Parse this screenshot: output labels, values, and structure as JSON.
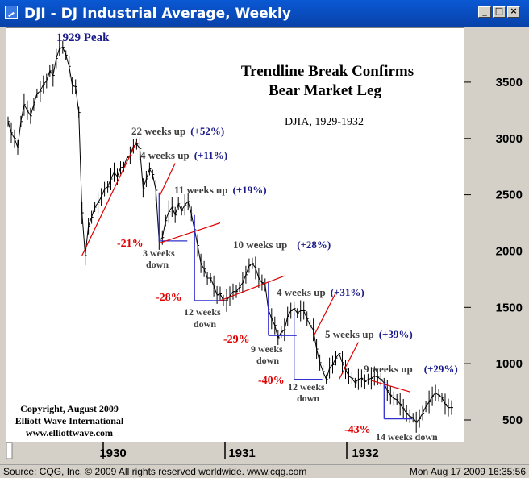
{
  "window": {
    "title": "DJI - DJ Industrial Average, Weekly",
    "buttons": {
      "minimize": "_",
      "maximize": "□",
      "close": "×"
    }
  },
  "footer": {
    "source": "Source: CQG, Inc. © 2009 All rights reserved worldwide. www.cqg.com",
    "timestamp": "Mon Aug 17 2009 16:35:56"
  },
  "chart_data": {
    "type": "line",
    "title": "Trendline Break Confirms\nBear Market Leg",
    "title_line1": "Trendline Break Confirms",
    "title_line2": "Bear Market Leg",
    "subtitle": "DJIA, 1929-1932",
    "peak_label": "1929 Peak",
    "copyright": [
      "Copyright, August 2009",
      "Elliott Wave International",
      "www.elliottwave.com"
    ],
    "xlabel": "",
    "ylabel": "",
    "x_ticks": [
      "1930",
      "1931",
      "1932"
    ],
    "y_ticks": [
      500,
      1000,
      1500,
      2000,
      2500,
      3000,
      3500
    ],
    "ylim": [
      320,
      3900
    ],
    "y_axis_position": "right",
    "grid": false,
    "series": [
      {
        "values": [
          3150,
          3050,
          3000,
          2920,
          3150,
          3300,
          3250,
          3200,
          3300,
          3400,
          3420,
          3480,
          3510,
          3600,
          3560,
          3710,
          3800,
          3810,
          3740,
          3640,
          3470,
          3460,
          3230,
          2340,
          1960,
          2220,
          2300,
          2390,
          2430,
          2480,
          2550,
          2570,
          2640,
          2700,
          2660,
          2740,
          2750,
          2830,
          2850,
          2930,
          2950,
          2910,
          2560,
          2640,
          2730,
          2680,
          2540,
          2090,
          2120,
          2270,
          2350,
          2390,
          2320,
          2420,
          2360,
          2410,
          2440,
          2330,
          2190,
          2050,
          1890,
          1840,
          1760,
          1760,
          1690,
          1610,
          1620,
          1560,
          1560,
          1600,
          1640,
          1640,
          1680,
          1720,
          1790,
          1870,
          1890,
          1850,
          1760,
          1720,
          1700,
          1480,
          1400,
          1340,
          1230,
          1280,
          1300,
          1420,
          1470,
          1490,
          1450,
          1470,
          1470,
          1400,
          1340,
          1300,
          1130,
          1010,
          930,
          860,
          960,
          990,
          1050,
          1090,
          1010,
          950,
          890,
          870,
          830,
          860,
          870,
          840,
          860,
          870,
          890,
          880,
          860,
          830,
          760,
          720,
          690,
          680,
          640,
          600,
          560,
          530,
          520,
          480,
          510,
          560,
          620,
          660,
          710,
          740,
          720,
          700,
          640,
          610,
          610
        ]
      }
    ],
    "annotations": [
      {
        "text": "22 weeks up",
        "pct": "(+52%)"
      },
      {
        "text": "4 weeks up",
        "pct": "(+11%)"
      },
      {
        "text": "11 weeks up",
        "pct": "(+19%)"
      },
      {
        "text": "10 weeks up",
        "pct": "(+28%)"
      },
      {
        "text": "4 weeks up",
        "pct": "(+31%)"
      },
      {
        "text": "5 weeks up",
        "pct": "(+39%)"
      },
      {
        "text": "9 weeks up",
        "pct": "(+29%)"
      }
    ],
    "declines": [
      {
        "pct": "-21%",
        "weeks": "3 weeks",
        "down": "down"
      },
      {
        "pct": "-28%",
        "weeks": "12 weeks",
        "down": "down"
      },
      {
        "pct": "-29%",
        "weeks": "9 weeks",
        "down": "down"
      },
      {
        "pct": "-40%",
        "weeks": "12 weeks",
        "down": "down"
      },
      {
        "pct": "-43%",
        "weeks": "14 weeks down",
        "down": ""
      }
    ],
    "colors": {
      "price": "#000000",
      "trendline": "#e00000",
      "decline_box": "#3030d0",
      "title_text": "#000000",
      "weeks_text": "#404040",
      "up_pct": "#1a1a8a",
      "down_pct": "#e00000",
      "peak_label": "#1a1a8a",
      "axis_bg": "#d4d0c8",
      "titlebar": "#0a58d4"
    }
  }
}
